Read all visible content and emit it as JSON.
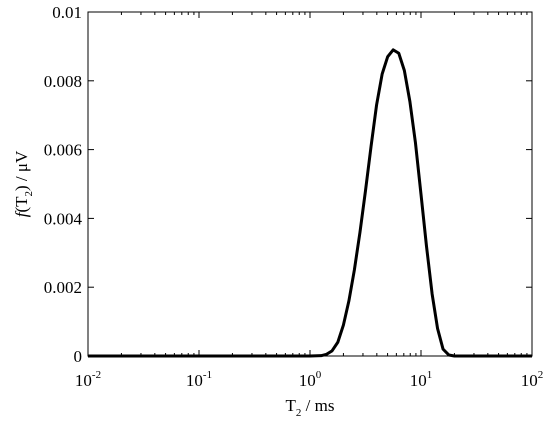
{
  "chart_data": {
    "type": "line",
    "title": "",
    "xlabel": {
      "main": "T",
      "sub": "2",
      "rest": " / ms"
    },
    "ylabel": {
      "func": "f",
      "open": "(T",
      "sub": "2",
      "close": ") / μV"
    },
    "x_scale": "log",
    "xlim": [
      0.01,
      100
    ],
    "ylim": [
      0,
      0.01
    ],
    "x_ticks": [
      {
        "value": 0.01,
        "base": "10",
        "exp": "-2"
      },
      {
        "value": 0.1,
        "base": "10",
        "exp": "-1"
      },
      {
        "value": 1,
        "base": "10",
        "exp": "0"
      },
      {
        "value": 10,
        "base": "10",
        "exp": "1"
      },
      {
        "value": 100,
        "base": "10",
        "exp": "2"
      }
    ],
    "y_ticks": [
      {
        "value": 0,
        "label": "0"
      },
      {
        "value": 0.002,
        "label": "0.002"
      },
      {
        "value": 0.004,
        "label": "0.004"
      },
      {
        "value": 0.006,
        "label": "0.006"
      },
      {
        "value": 0.008,
        "label": "0.008"
      },
      {
        "value": 0.01,
        "label": "0.01"
      }
    ],
    "grid": false,
    "series": [
      {
        "color": "#000000",
        "x": [
          0.01,
          0.1,
          1,
          1.26,
          1.41,
          1.58,
          1.78,
          2.0,
          2.24,
          2.51,
          2.82,
          3.16,
          3.55,
          3.98,
          4.47,
          5.01,
          5.62,
          6.31,
          7.08,
          7.94,
          8.91,
          10.0,
          11.2,
          12.6,
          14.1,
          15.8,
          17.8,
          20.0,
          30,
          100
        ],
        "y": [
          0,
          0,
          0,
          1e-05,
          5e-05,
          0.00015,
          0.0004,
          0.0009,
          0.0016,
          0.0025,
          0.0036,
          0.0048,
          0.0061,
          0.0073,
          0.0082,
          0.0087,
          0.0089,
          0.0088,
          0.0083,
          0.0074,
          0.0062,
          0.0047,
          0.0032,
          0.0018,
          0.0008,
          0.0002,
          3e-05,
          0,
          0,
          0
        ]
      }
    ]
  }
}
